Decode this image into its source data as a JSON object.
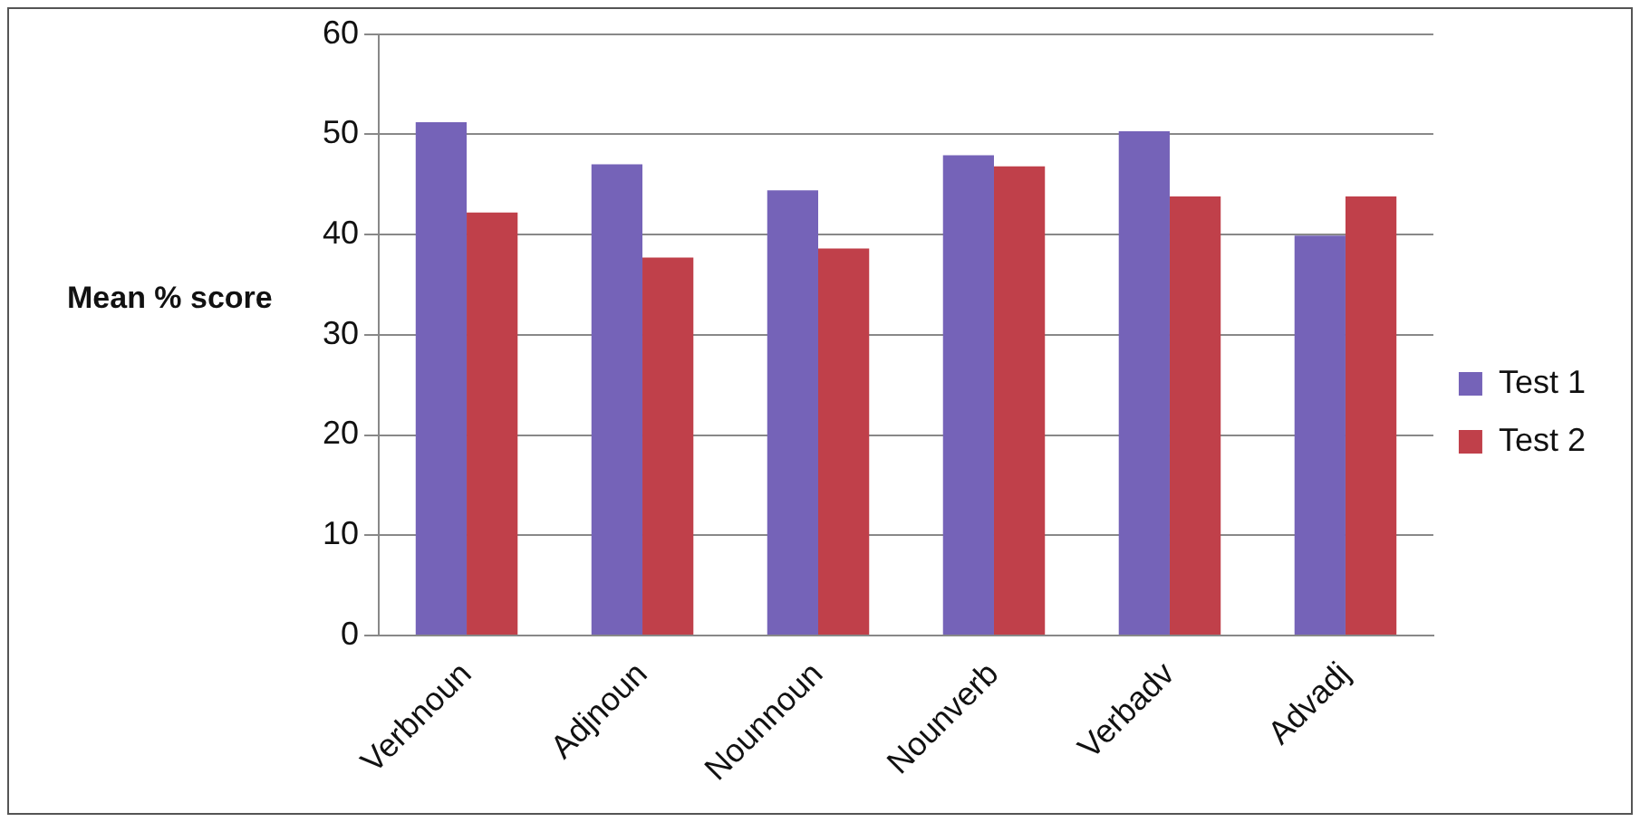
{
  "chart_data": {
    "type": "bar",
    "ylabel": "Mean % score",
    "categories": [
      "Verbnoun",
      "Adjnoun",
      "Nounnoun",
      "Nounverb",
      "Verbadv",
      "Advadj"
    ],
    "series": [
      {
        "name": "Test 1",
        "color": "#7563b8",
        "values": [
          51.2,
          47.0,
          44.4,
          47.9,
          50.3,
          39.9
        ]
      },
      {
        "name": "Test 2",
        "color": "#c0404a",
        "values": [
          42.2,
          37.7,
          38.6,
          46.8,
          43.8,
          43.8
        ]
      }
    ],
    "ylim": [
      0,
      60
    ],
    "yticks": [
      0,
      10,
      20,
      30,
      40,
      50,
      60
    ],
    "grid": "y",
    "legend": "right"
  }
}
